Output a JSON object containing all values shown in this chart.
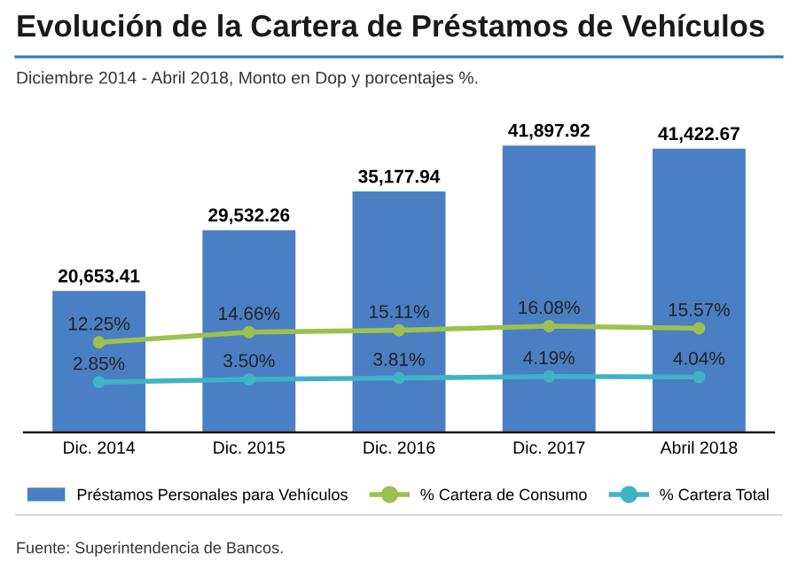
{
  "chart_data": {
    "type": "bar",
    "title": "Evolución de la Cartera de Préstamos de Vehículos",
    "subtitle": "Diciembre 2014 - Abril 2018, Monto en Dop y porcentajes %.",
    "categories": [
      "Dic. 2014",
      "Dic. 2015",
      "Dic. 2016",
      "Dic. 2017",
      "Abril 2018"
    ],
    "series": [
      {
        "name": "Préstamos Personales para Vehículos",
        "color": "#4a7fc4",
        "values": [
          20653.41,
          29532.26,
          35177.94,
          41897.92,
          41422.67
        ],
        "value_labels": [
          "20,653.41",
          "29,532.26",
          "35,177.94",
          "41,897.92",
          "41,422.67"
        ]
      },
      {
        "name": "% Cartera de Consumo",
        "type": "line",
        "axis": "y2",
        "color": "#9cc14e",
        "values": [
          12.25,
          14.66,
          15.11,
          16.08,
          15.57
        ],
        "value_labels": [
          "12.25%",
          "14.66%",
          "15.11%",
          "16.08%",
          "15.57%"
        ]
      },
      {
        "name": "% Cartera Total",
        "type": "line",
        "axis": "y2",
        "color": "#3fb3c6",
        "values": [
          2.85,
          3.5,
          3.81,
          4.19,
          4.04
        ],
        "value_labels": [
          "2.85%",
          "3.50%",
          "3.81%",
          "4.19%",
          "4.04%"
        ]
      }
    ],
    "marker": "circle",
    "legend": "bottom",
    "tick_labels": "x",
    "annotations": [
      "Fuente: Superintendencia de Bancos."
    ]
  }
}
